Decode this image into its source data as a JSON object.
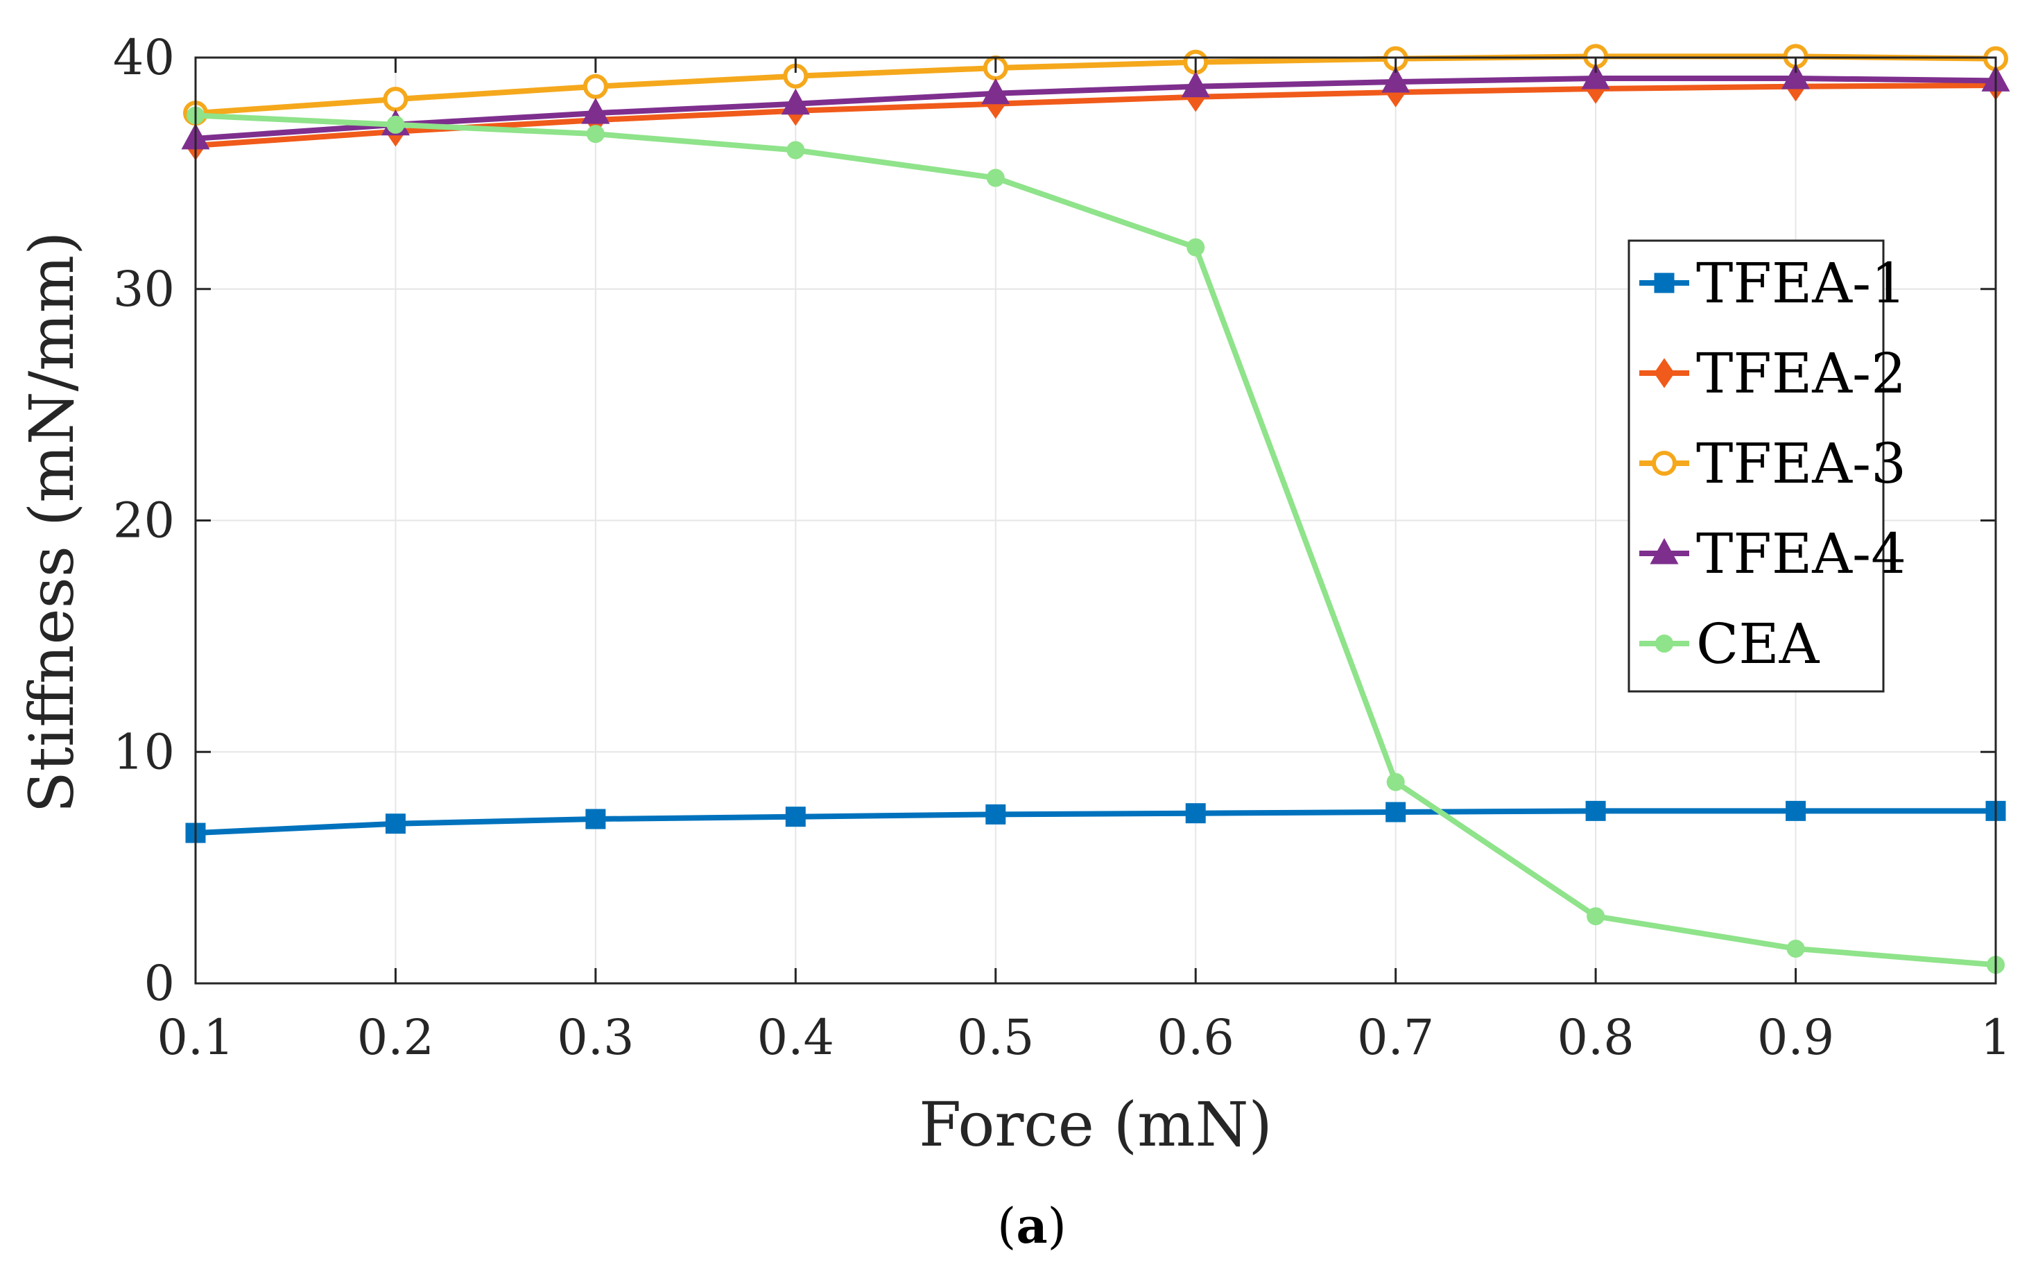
{
  "chart_data": {
    "type": "line",
    "title": "",
    "xlabel": "Force (mN)",
    "ylabel": "Stiffness (mN/mm)",
    "caption_prefix": "(",
    "caption_letter": "a",
    "caption_suffix": ")",
    "xlim": [
      0.1,
      1
    ],
    "ylim": [
      0,
      40
    ],
    "x": [
      0.1,
      0.2,
      0.3,
      0.4,
      0.5,
      0.6,
      0.7,
      0.8,
      0.9,
      1.0
    ],
    "xticks": [
      "0.1",
      "0.2",
      "0.3",
      "0.4",
      "0.5",
      "0.6",
      "0.7",
      "0.8",
      "0.9",
      "1"
    ],
    "yticks": [
      "0",
      "10",
      "20",
      "30",
      "40"
    ],
    "grid": true,
    "legend_position": "right",
    "series": [
      {
        "name": "TFEA-1",
        "color": "#0072BD",
        "marker": "square",
        "values": [
          6.5,
          6.9,
          7.1,
          7.2,
          7.3,
          7.35,
          7.4,
          7.45,
          7.45,
          7.45
        ]
      },
      {
        "name": "TFEA-2",
        "color": "#F05A1A",
        "marker": "diamond",
        "values": [
          36.2,
          36.8,
          37.3,
          37.7,
          38.0,
          38.3,
          38.5,
          38.65,
          38.75,
          38.8
        ]
      },
      {
        "name": "TFEA-3",
        "color": "#F5A81C",
        "marker": "circle",
        "values": [
          37.6,
          38.2,
          38.75,
          39.2,
          39.55,
          39.8,
          39.95,
          40.05,
          40.05,
          39.95
        ]
      },
      {
        "name": "TFEA-4",
        "color": "#7E2F8E",
        "marker": "triangle",
        "values": [
          36.5,
          37.1,
          37.6,
          38.0,
          38.45,
          38.75,
          38.95,
          39.1,
          39.1,
          39.0
        ]
      },
      {
        "name": "CEA",
        "color": "#8FE38A",
        "marker": "dot",
        "values": [
          37.5,
          37.1,
          36.7,
          36.0,
          34.8,
          31.8,
          8.7,
          2.9,
          1.5,
          0.8
        ]
      }
    ]
  }
}
